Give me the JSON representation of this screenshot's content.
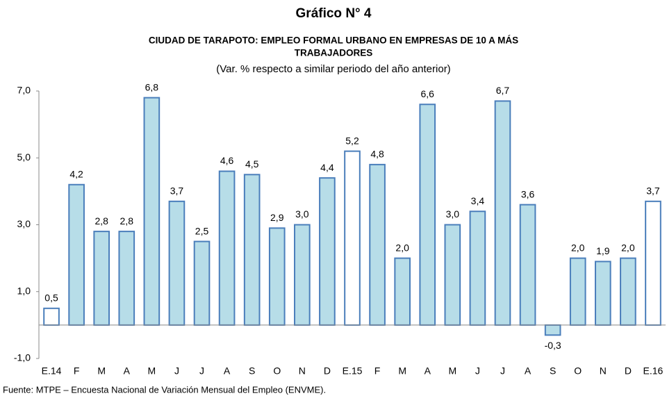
{
  "chart_data": {
    "type": "bar",
    "title": "Gráfico N° 4",
    "subtitle": [
      "CIUDAD DE TARAPOTO: EMPLEO FORMAL URBANO EN EMPRESAS DE 10 A MÁS",
      "TRABAJADORES"
    ],
    "note": "(Var. % respecto a similar periodo del año anterior)",
    "source": "Fuente: MTPE – Encuesta Nacional de Variación Mensual del Empleo (ENVME).",
    "categories": [
      "E.14",
      "F",
      "M",
      "A",
      "M",
      "J",
      "J",
      "A",
      "S",
      "O",
      "N",
      "D",
      "E.15",
      "F",
      "M",
      "A",
      "M",
      "J",
      "J",
      "A",
      "S",
      "O",
      "N",
      "D",
      "E.16"
    ],
    "values": [
      0.5,
      4.2,
      2.8,
      2.8,
      6.8,
      3.7,
      2.5,
      4.6,
      4.5,
      2.9,
      3.0,
      4.4,
      5.2,
      4.8,
      2.0,
      6.6,
      3.0,
      3.4,
      6.7,
      3.6,
      -0.3,
      2.0,
      1.9,
      2.0,
      3.7
    ],
    "value_labels": [
      "0,5",
      "4,2",
      "2,8",
      "2,8",
      "6,8",
      "3,7",
      "2,5",
      "4,6",
      "4,5",
      "2,9",
      "3,0",
      "4,4",
      "5,2",
      "4,8",
      "2,0",
      "6,6",
      "3,0",
      "3,4",
      "6,7",
      "3,6",
      "-0,3",
      "2,0",
      "1,9",
      "2,0",
      "3,7"
    ],
    "colors": [
      "#ffffff",
      "#b7dde8",
      "#b7dde8",
      "#b7dde8",
      "#b7dde8",
      "#b7dde8",
      "#b7dde8",
      "#b7dde8",
      "#b7dde8",
      "#b7dde8",
      "#b7dde8",
      "#b7dde8",
      "#ffffff",
      "#b7dde8",
      "#b7dde8",
      "#b7dde8",
      "#b7dde8",
      "#b7dde8",
      "#b7dde8",
      "#b7dde8",
      "#b7dde8",
      "#b7dde8",
      "#b7dde8",
      "#b7dde8",
      "#ffffff"
    ],
    "edge_color": "#4a7ebb",
    "ylim": [
      -1,
      7
    ],
    "yticks": [
      {
        "value": -1,
        "label": "-1,0"
      },
      {
        "value": 1,
        "label": "1,0"
      },
      {
        "value": 3,
        "label": "3,0"
      },
      {
        "value": 5,
        "label": "5,0"
      },
      {
        "value": 7,
        "label": "7,0"
      }
    ],
    "grid": false
  }
}
